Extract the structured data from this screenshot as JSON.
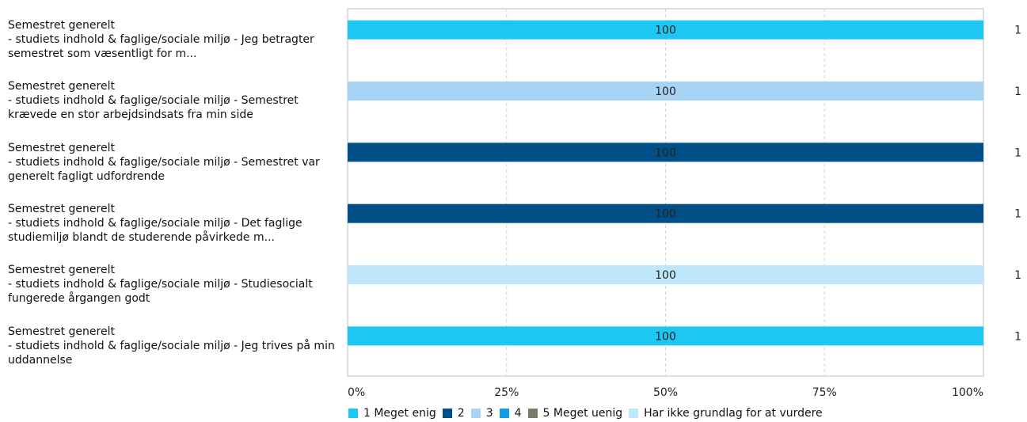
{
  "chart_data": {
    "type": "bar",
    "orientation": "horizontal",
    "stacked": true,
    "percent_scale": true,
    "categories": [
      "Semestret generelt\n- studiets indhold & faglige/sociale miljø - Jeg betragter semestret som væsentligt for m...",
      "Semestret generelt\n- studiets indhold & faglige/sociale miljø - Semestret krævede en stor arbejdsindsats fra min side",
      "Semestret generelt\n- studiets indhold & faglige/sociale miljø - Semestret var generelt fagligt udfordrende",
      "Semestret generelt\n- studiets indhold & faglige/sociale miljø - Det faglige studiemiljø blandt de studerende påvirkede m...",
      "Semestret generelt\n- studiets indhold & faglige/sociale miljø - Studiesocialt fungerede årgangen godt",
      "Semestret generelt\n- studiets indhold & faglige/sociale miljø - Jeg trives på min uddannelse"
    ],
    "series": [
      {
        "name": "1 Meget enig",
        "color": "#1ec6f2",
        "values": [
          100,
          0,
          0,
          0,
          0,
          100
        ]
      },
      {
        "name": "2",
        "color": "#004f86",
        "values": [
          0,
          0,
          100,
          100,
          0,
          0
        ]
      },
      {
        "name": "3",
        "color": "#a7d3f4",
        "values": [
          0,
          100,
          0,
          0,
          0,
          0
        ]
      },
      {
        "name": "4",
        "color": "#0f9fe2",
        "values": [
          0,
          0,
          0,
          0,
          0,
          0
        ]
      },
      {
        "name": "5 Meget uenig",
        "color": "#7a7a66",
        "values": [
          0,
          0,
          0,
          0,
          0,
          0
        ]
      },
      {
        "name": "Har ikke grundlag for  at vurdere",
        "color": "#bfe7fb",
        "values": [
          0,
          0,
          0,
          0,
          100,
          0
        ]
      }
    ],
    "data_labels": [
      "100",
      "100",
      "100",
      "100",
      "100",
      "100"
    ],
    "counts": [
      "1",
      "1",
      "1",
      "1",
      "1",
      "1"
    ],
    "x_ticks": [
      "0%",
      "25%",
      "50%",
      "75%",
      "100%"
    ],
    "xlim": [
      0,
      100
    ],
    "grid": "vertical-dashed",
    "legend_position": "bottom"
  }
}
